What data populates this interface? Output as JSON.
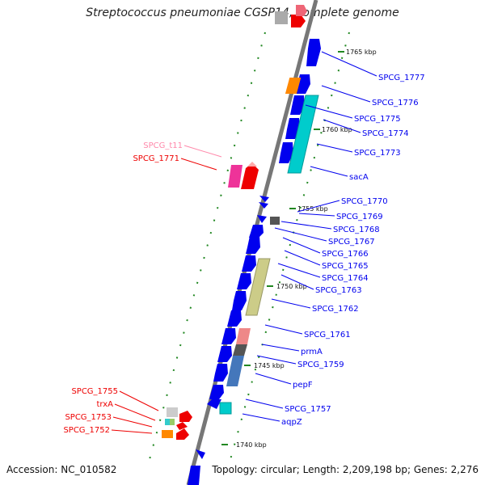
{
  "title": "Streptococcus pneumoniae CGSP14, complete genome",
  "footer": {
    "accession": "Accession: NC_010582",
    "summary": "Topology: circular; Length: 2,209,198 bp; Genes: 2,276"
  },
  "colors": {
    "cds": "#0000ee",
    "rna": "#ee0000",
    "trna": "#ee5599",
    "backbone": "#777777",
    "tick": "#228822"
  },
  "kbp_marks": [
    "1765 kbp",
    "1760 kbp",
    "1755 kbp",
    "1750 kbp",
    "1745 kbp",
    "1740 kbp"
  ],
  "right_labels": [
    "SPCG_1777",
    "SPCG_1776",
    "SPCG_1775",
    "SPCG_1774",
    "SPCG_1773",
    "sacA",
    "SPCG_1770",
    "SPCG_1769",
    "SPCG_1768",
    "SPCG_1767",
    "SPCG_1766",
    "SPCG_1765",
    "SPCG_1764",
    "SPCG_1763",
    "SPCG_1762",
    "SPCG_1761",
    "prmA",
    "SPCG_1759",
    "pepF",
    "SPCG_1757",
    "aqpZ"
  ],
  "left_labels": [
    "SPCG_t11",
    "SPCG_1771",
    "SPCG_1755",
    "trxA",
    "SPCG_1753",
    "SPCG_1752"
  ]
}
